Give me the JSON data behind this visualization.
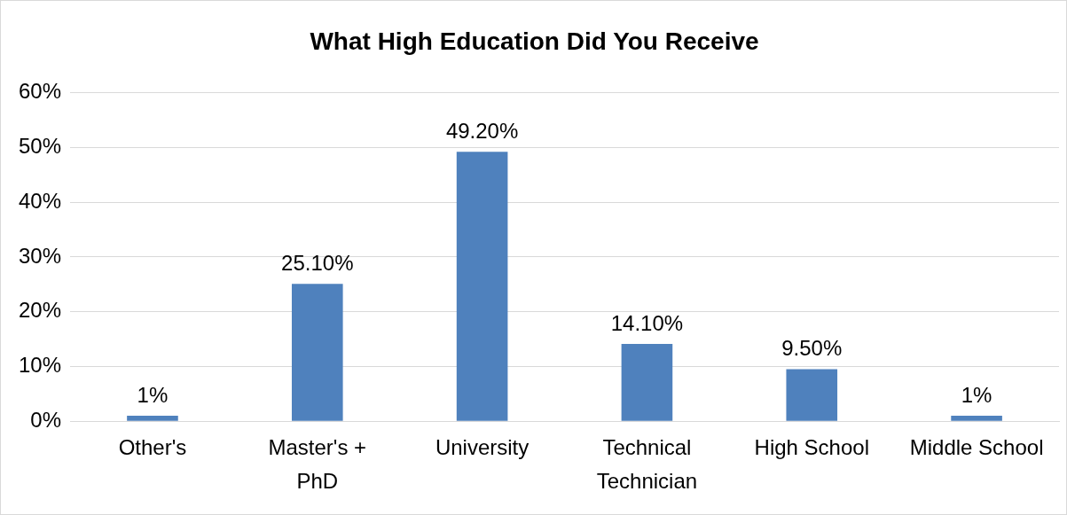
{
  "chart_data": {
    "type": "bar",
    "title": "What High Education Did You Receive",
    "categories": [
      "Other's",
      "Master's + PhD",
      "University",
      "Technical Technician",
      "High School",
      "Middle School"
    ],
    "values": [
      1,
      25.1,
      49.2,
      14.1,
      9.5,
      1
    ],
    "value_labels": [
      "1%",
      "25.10%",
      "49.20%",
      "14.10%",
      "9.50%",
      "1%"
    ],
    "color": "#4f81bd",
    "ylim": [
      0,
      60
    ],
    "yticks": [
      {
        "value": 0,
        "label": "0%"
      },
      {
        "value": 10,
        "label": "10%"
      },
      {
        "value": 20,
        "label": "20%"
      },
      {
        "value": 30,
        "label": "30%"
      },
      {
        "value": 40,
        "label": "40%"
      },
      {
        "value": 50,
        "label": "50%"
      },
      {
        "value": 60,
        "label": "60%"
      }
    ],
    "grid": "y",
    "legend": false
  }
}
